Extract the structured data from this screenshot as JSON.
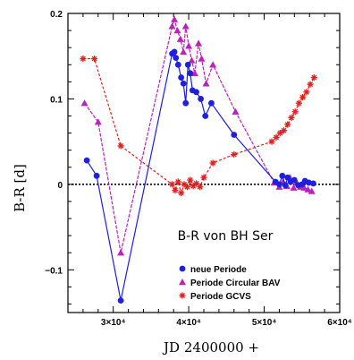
{
  "chart_data": {
    "type": "scatter",
    "title": "B-R von BH Ser",
    "xlabel": "JD 2400000 +",
    "ylabel": "B-R [d]",
    "xlim": [
      24000,
      60000
    ],
    "ylim": [
      -0.15,
      0.2
    ],
    "x_ticks": [
      {
        "value": 30000,
        "label": "3×10⁴"
      },
      {
        "value": 40000,
        "label": "4×10⁴"
      },
      {
        "value": 50000,
        "label": "5×10⁴"
      },
      {
        "value": 60000,
        "label": "6×10⁴"
      }
    ],
    "y_ticks": [
      {
        "value": -0.1,
        "label": "−0.1"
      },
      {
        "value": 0,
        "label": "0"
      },
      {
        "value": 0.1,
        "label": "0.1"
      },
      {
        "value": 0.2,
        "label": "0.2"
      }
    ],
    "zero_line": true,
    "legend_position": "bottom-right",
    "series": [
      {
        "name": "neue Periode",
        "color": "#1f1fdd",
        "marker": "circle",
        "points": [
          [
            26500,
            0.028
          ],
          [
            27800,
            0.01
          ],
          [
            31000,
            -0.136
          ],
          [
            37800,
            0.153
          ],
          [
            38100,
            0.155
          ],
          [
            38300,
            0.148
          ],
          [
            38600,
            0.14
          ],
          [
            39000,
            0.125
          ],
          [
            39300,
            0.118
          ],
          [
            39600,
            0.095
          ],
          [
            39900,
            0.14
          ],
          [
            40200,
            0.13
          ],
          [
            40500,
            0.11
          ],
          [
            41000,
            0.108
          ],
          [
            41600,
            0.1
          ],
          [
            42200,
            0.08
          ],
          [
            43000,
            0.095
          ],
          [
            46000,
            0.058
          ],
          [
            51500,
            0.003
          ],
          [
            52000,
            0.0
          ],
          [
            52400,
            0.01
          ],
          [
            52800,
            -0.001
          ],
          [
            53100,
            0.008
          ],
          [
            53500,
            0.003
          ],
          [
            54000,
            0.005
          ],
          [
            54500,
            -0.001
          ],
          [
            55000,
            0.0
          ],
          [
            55400,
            0.004
          ],
          [
            55900,
            0.002
          ],
          [
            56500,
            0.001
          ]
        ]
      },
      {
        "name": "Periode Circular BAV",
        "color": "#bb22bb",
        "marker": "triangle",
        "points": [
          [
            26200,
            0.095
          ],
          [
            28000,
            0.073
          ],
          [
            31000,
            -0.08
          ],
          [
            37800,
            0.185
          ],
          [
            38100,
            0.193
          ],
          [
            38500,
            0.18
          ],
          [
            38900,
            0.17
          ],
          [
            39300,
            0.155
          ],
          [
            39600,
            0.185
          ],
          [
            40000,
            0.162
          ],
          [
            40400,
            0.145
          ],
          [
            40800,
            0.13
          ],
          [
            41300,
            0.165
          ],
          [
            41700,
            0.147
          ],
          [
            42300,
            0.118
          ],
          [
            43200,
            0.14
          ],
          [
            46200,
            0.085
          ],
          [
            51300,
            0.002
          ],
          [
            52000,
            -0.003
          ],
          [
            52500,
            0.003
          ],
          [
            53000,
            -0.002
          ],
          [
            53400,
            0.008
          ],
          [
            53900,
            -0.004
          ],
          [
            54300,
            0.002
          ],
          [
            54800,
            -0.003
          ],
          [
            55300,
            -0.004
          ],
          [
            55800,
            -0.006
          ],
          [
            56300,
            -0.008
          ]
        ]
      },
      {
        "name": "Periode GCVS",
        "color": "#e02020",
        "marker": "asterisk",
        "points": [
          [
            26000,
            0.147
          ],
          [
            27500,
            0.147
          ],
          [
            31000,
            0.045
          ],
          [
            37800,
            0.0
          ],
          [
            38200,
            -0.007
          ],
          [
            38600,
            0.003
          ],
          [
            39000,
            -0.01
          ],
          [
            39400,
            0.0
          ],
          [
            39800,
            -0.003
          ],
          [
            40200,
            0.005
          ],
          [
            40600,
            -0.002
          ],
          [
            41000,
            0.001
          ],
          [
            41500,
            -0.003
          ],
          [
            42000,
            0.008
          ],
          [
            43200,
            0.025
          ],
          [
            46000,
            0.035
          ],
          [
            51000,
            0.05
          ],
          [
            51600,
            0.055
          ],
          [
            52100,
            0.06
          ],
          [
            52600,
            0.063
          ],
          [
            53100,
            0.07
          ],
          [
            53600,
            0.078
          ],
          [
            54100,
            0.085
          ],
          [
            54600,
            0.095
          ],
          [
            55100,
            0.102
          ],
          [
            55600,
            0.108
          ],
          [
            56100,
            0.117
          ],
          [
            56600,
            0.125
          ]
        ]
      }
    ]
  }
}
